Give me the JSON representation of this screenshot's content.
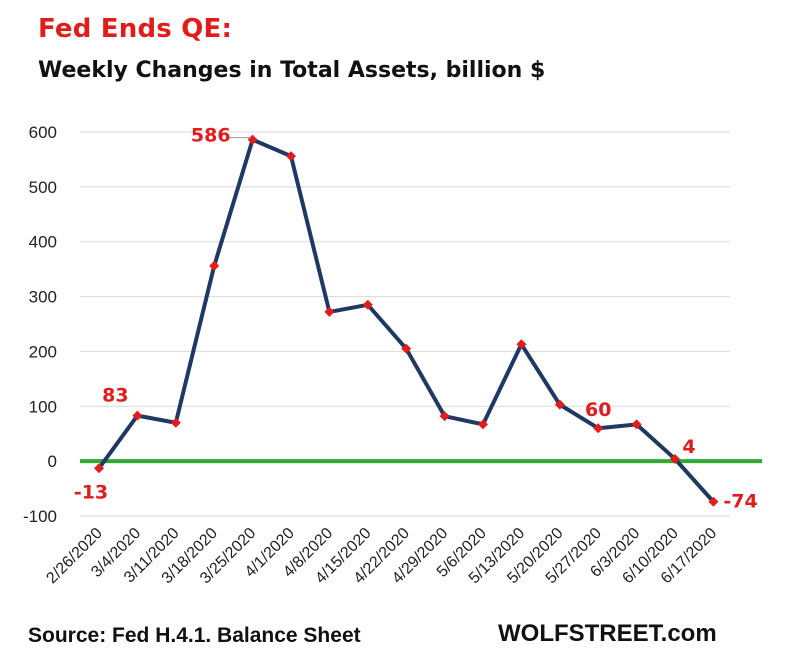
{
  "header": {
    "title": "Fed Ends  QE:",
    "subtitle": "Weekly Changes in Total Assets, billion $"
  },
  "footer": {
    "source": "Source: Fed H.4.1. Balance Sheet",
    "brand": "WOLFSTREET.com"
  },
  "chart_data": {
    "type": "line",
    "title": "Fed Ends  QE:",
    "subtitle": "Weekly Changes in Total Assets, billion $",
    "xlabel": "",
    "ylabel": "",
    "ylim": [
      -100,
      600
    ],
    "yticks": [
      -100,
      0,
      100,
      200,
      300,
      400,
      500,
      600
    ],
    "grid": true,
    "categories": [
      "2/26/2020",
      "3/4/2020",
      "3/11/2020",
      "3/18/2020",
      "3/25/2020",
      "4/1/2020",
      "4/8/2020",
      "4/15/2020",
      "4/22/2020",
      "4/29/2020",
      "5/6/2020",
      "5/13/2020",
      "5/20/2020",
      "5/27/2020",
      "6/3/2020",
      "6/10/2020",
      "6/17/2020"
    ],
    "series": [
      {
        "values": [
          -13,
          83,
          70,
          356,
          586,
          556,
          272,
          285,
          205,
          82,
          67,
          213,
          103,
          60,
          67,
          4,
          -74
        ]
      }
    ],
    "data_labels": [
      {
        "index": 0,
        "text": "-13"
      },
      {
        "index": 1,
        "text": "83"
      },
      {
        "index": 4,
        "text": "586"
      },
      {
        "index": 13,
        "text": "60"
      },
      {
        "index": 15,
        "text": "4"
      },
      {
        "index": 16,
        "text": "-74"
      }
    ],
    "colors": {
      "line": "#1f3864",
      "marker": "#e31b1b",
      "zero_line": "#2eaa2e",
      "grid": "#d9d9d9",
      "labels": "#e31b1b"
    }
  }
}
